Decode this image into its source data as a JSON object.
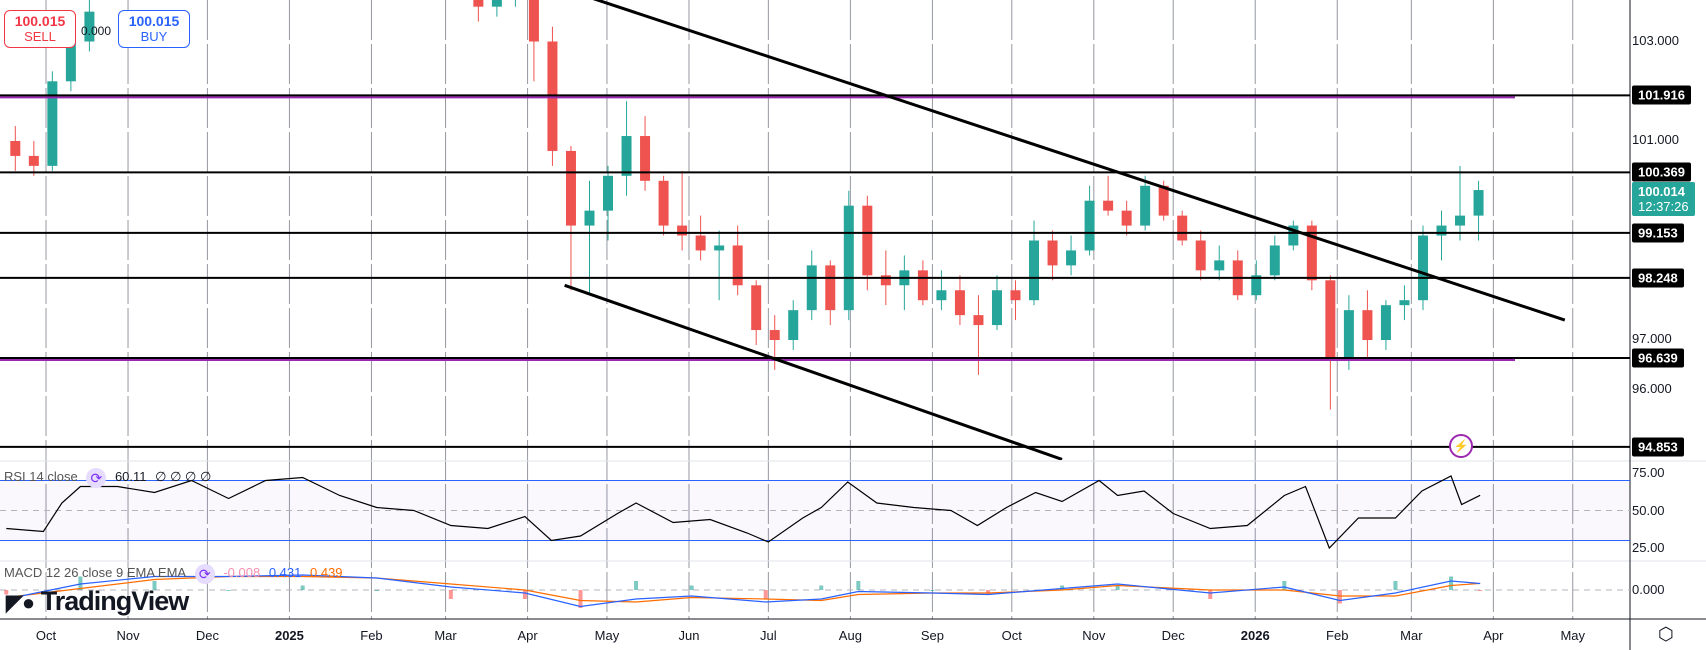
{
  "trade": {
    "sell_price": "100.015",
    "sell_label": "SELL",
    "buy_price": "100.015",
    "buy_label": "BUY",
    "spread": "0.000"
  },
  "rsi_legend": {
    "name": "RSI 14 close",
    "value": "60.11",
    "extras": "∅ ∅ ∅ ∅"
  },
  "macd_legend": {
    "name": "MACD 12 26 close 9 EMA EMA",
    "hist": "-0.008",
    "macd": "0.431",
    "signal": "0.439"
  },
  "logo": "TradingView",
  "current_price": {
    "price": "100.014",
    "countdown": "12:37:26"
  },
  "colors": {
    "up": "#26a69a",
    "down": "#ef5350",
    "level_purple": "#9c27b0",
    "macd": "#2962ff",
    "signal": "#ff6d00",
    "rsi_band": "#2962ff"
  },
  "icons": {
    "indicator": "sync-icon",
    "alert": "lightning-icon",
    "settings": "gear-icon"
  },
  "chart_data": {
    "type": "candlestick",
    "price_ticks": [
      "103.000",
      "101.000",
      "97.000",
      "96.000"
    ],
    "levels": [
      {
        "value": "101.916",
        "purple": true
      },
      {
        "value": "100.369",
        "purple": false
      },
      {
        "value": "99.153",
        "purple": false
      },
      {
        "value": "98.248",
        "purple": false
      },
      {
        "value": "96.639",
        "purple": true
      },
      {
        "value": "94.853",
        "purple": false
      }
    ],
    "trendlines": [
      {
        "from": [
          "2025-04-18",
          104.0
        ],
        "to": [
          "2026-04-28",
          97.4
        ]
      },
      {
        "from": [
          "2025-04-15",
          98.1
        ],
        "to": [
          "2025-10-20",
          94.6
        ]
      }
    ],
    "time_ticks": [
      {
        "label": "Oct",
        "date": "2024-10-01"
      },
      {
        "label": "Nov",
        "date": "2024-11-01"
      },
      {
        "label": "Dec",
        "date": "2024-12-01"
      },
      {
        "label": "2025",
        "date": "2025-01-01",
        "bold": true
      },
      {
        "label": "Feb",
        "date": "2025-02-01"
      },
      {
        "label": "Mar",
        "date": "2025-03-01"
      },
      {
        "label": "Apr",
        "date": "2025-04-01"
      },
      {
        "label": "May",
        "date": "2025-05-01"
      },
      {
        "label": "Jun",
        "date": "2025-06-01"
      },
      {
        "label": "Jul",
        "date": "2025-07-01"
      },
      {
        "label": "Aug",
        "date": "2025-08-01"
      },
      {
        "label": "Sep",
        "date": "2025-09-01"
      },
      {
        "label": "Oct",
        "date": "2025-10-01"
      },
      {
        "label": "Nov",
        "date": "2025-11-01"
      },
      {
        "label": "Dec",
        "date": "2025-12-01"
      },
      {
        "label": "2026",
        "date": "2026-01-01",
        "bold": true
      },
      {
        "label": "Feb",
        "date": "2026-02-01"
      },
      {
        "label": "Mar",
        "date": "2026-03-01"
      },
      {
        "label": "Apr",
        "date": "2026-04-01"
      },
      {
        "label": "May",
        "date": "2026-05-01"
      }
    ],
    "candles": [
      {
        "d": "2024-09-16",
        "o": 101.0,
        "h": 101.3,
        "l": 100.4,
        "c": 100.7
      },
      {
        "d": "2024-09-23",
        "o": 100.7,
        "h": 101.0,
        "l": 100.3,
        "c": 100.5
      },
      {
        "d": "2024-09-30",
        "o": 100.5,
        "h": 102.4,
        "l": 100.4,
        "c": 102.2
      },
      {
        "d": "2024-10-07",
        "o": 102.2,
        "h": 103.2,
        "l": 102.0,
        "c": 103.0
      },
      {
        "d": "2024-10-14",
        "o": 103.0,
        "h": 103.9,
        "l": 102.8,
        "c": 103.6
      },
      {
        "d": "2025-03-10",
        "o": 104.1,
        "h": 104.2,
        "l": 103.4,
        "c": 103.7
      },
      {
        "d": "2025-03-17",
        "o": 103.7,
        "h": 104.0,
        "l": 103.5,
        "c": 103.9
      },
      {
        "d": "2025-03-24",
        "o": 103.9,
        "h": 104.2,
        "l": 103.7,
        "c": 104.0
      },
      {
        "d": "2025-03-31",
        "o": 104.0,
        "h": 104.0,
        "l": 102.2,
        "c": 103.0
      },
      {
        "d": "2025-04-07",
        "o": 103.0,
        "h": 103.3,
        "l": 100.5,
        "c": 100.8
      },
      {
        "d": "2025-04-14",
        "o": 100.8,
        "h": 100.9,
        "l": 98.0,
        "c": 99.3
      },
      {
        "d": "2025-04-21",
        "o": 99.3,
        "h": 100.2,
        "l": 97.9,
        "c": 99.6
      },
      {
        "d": "2025-04-28",
        "o": 99.6,
        "h": 100.5,
        "l": 99.0,
        "c": 100.3
      },
      {
        "d": "2025-05-05",
        "o": 100.3,
        "h": 101.8,
        "l": 99.9,
        "c": 101.1
      },
      {
        "d": "2025-05-12",
        "o": 101.1,
        "h": 101.5,
        "l": 100.0,
        "c": 100.2
      },
      {
        "d": "2025-05-19",
        "o": 100.2,
        "h": 100.3,
        "l": 99.1,
        "c": 99.3
      },
      {
        "d": "2025-05-26",
        "o": 99.3,
        "h": 100.4,
        "l": 98.8,
        "c": 99.1
      },
      {
        "d": "2025-06-02",
        "o": 99.1,
        "h": 99.5,
        "l": 98.6,
        "c": 98.8
      },
      {
        "d": "2025-06-09",
        "o": 98.8,
        "h": 99.2,
        "l": 97.8,
        "c": 98.9
      },
      {
        "d": "2025-06-16",
        "o": 98.9,
        "h": 99.3,
        "l": 97.9,
        "c": 98.1
      },
      {
        "d": "2025-06-23",
        "o": 98.1,
        "h": 98.2,
        "l": 96.9,
        "c": 97.2
      },
      {
        "d": "2025-06-30",
        "o": 97.2,
        "h": 97.5,
        "l": 96.4,
        "c": 97.0
      },
      {
        "d": "2025-07-07",
        "o": 97.0,
        "h": 97.8,
        "l": 96.8,
        "c": 97.6
      },
      {
        "d": "2025-07-14",
        "o": 97.6,
        "h": 98.8,
        "l": 97.4,
        "c": 98.5
      },
      {
        "d": "2025-07-21",
        "o": 98.5,
        "h": 98.6,
        "l": 97.3,
        "c": 97.6
      },
      {
        "d": "2025-07-28",
        "o": 97.6,
        "h": 100.0,
        "l": 97.4,
        "c": 99.7
      },
      {
        "d": "2025-08-04",
        "o": 99.7,
        "h": 99.9,
        "l": 98.0,
        "c": 98.3
      },
      {
        "d": "2025-08-11",
        "o": 98.3,
        "h": 98.8,
        "l": 97.7,
        "c": 98.1
      },
      {
        "d": "2025-08-18",
        "o": 98.1,
        "h": 98.7,
        "l": 97.6,
        "c": 98.4
      },
      {
        "d": "2025-08-25",
        "o": 98.4,
        "h": 98.6,
        "l": 97.7,
        "c": 97.8
      },
      {
        "d": "2025-09-01",
        "o": 97.8,
        "h": 98.4,
        "l": 97.6,
        "c": 98.0
      },
      {
        "d": "2025-09-08",
        "o": 98.0,
        "h": 98.3,
        "l": 97.3,
        "c": 97.5
      },
      {
        "d": "2025-09-15",
        "o": 97.5,
        "h": 97.9,
        "l": 96.3,
        "c": 97.3
      },
      {
        "d": "2025-09-22",
        "o": 97.3,
        "h": 98.3,
        "l": 97.2,
        "c": 98.0
      },
      {
        "d": "2025-09-29",
        "o": 98.0,
        "h": 98.2,
        "l": 97.4,
        "c": 97.8
      },
      {
        "d": "2025-10-06",
        "o": 97.8,
        "h": 99.4,
        "l": 97.7,
        "c": 99.0
      },
      {
        "d": "2025-10-13",
        "o": 99.0,
        "h": 99.2,
        "l": 98.2,
        "c": 98.5
      },
      {
        "d": "2025-10-20",
        "o": 98.5,
        "h": 99.1,
        "l": 98.3,
        "c": 98.8
      },
      {
        "d": "2025-10-27",
        "o": 98.8,
        "h": 100.1,
        "l": 98.7,
        "c": 99.8
      },
      {
        "d": "2025-11-03",
        "o": 99.8,
        "h": 100.3,
        "l": 99.5,
        "c": 99.6
      },
      {
        "d": "2025-11-10",
        "o": 99.6,
        "h": 99.8,
        "l": 99.1,
        "c": 99.3
      },
      {
        "d": "2025-11-17",
        "o": 99.3,
        "h": 100.3,
        "l": 99.2,
        "c": 100.1
      },
      {
        "d": "2025-11-24",
        "o": 100.1,
        "h": 100.2,
        "l": 99.4,
        "c": 99.5
      },
      {
        "d": "2025-12-01",
        "o": 99.5,
        "h": 99.6,
        "l": 98.9,
        "c": 99.0
      },
      {
        "d": "2025-12-08",
        "o": 99.0,
        "h": 99.2,
        "l": 98.2,
        "c": 98.4
      },
      {
        "d": "2025-12-15",
        "o": 98.4,
        "h": 98.9,
        "l": 98.2,
        "c": 98.6
      },
      {
        "d": "2025-12-22",
        "o": 98.6,
        "h": 98.8,
        "l": 97.8,
        "c": 97.9
      },
      {
        "d": "2025-12-29",
        "o": 97.9,
        "h": 98.6,
        "l": 97.8,
        "c": 98.3
      },
      {
        "d": "2026-01-05",
        "o": 98.3,
        "h": 99.1,
        "l": 98.2,
        "c": 98.9
      },
      {
        "d": "2026-01-12",
        "o": 98.9,
        "h": 99.4,
        "l": 98.8,
        "c": 99.3
      },
      {
        "d": "2026-01-19",
        "o": 99.3,
        "h": 99.4,
        "l": 98.0,
        "c": 98.2
      },
      {
        "d": "2026-01-26",
        "o": 98.2,
        "h": 98.3,
        "l": 95.6,
        "c": 96.6
      },
      {
        "d": "2026-02-02",
        "o": 96.6,
        "h": 97.9,
        "l": 96.4,
        "c": 97.6
      },
      {
        "d": "2026-02-09",
        "o": 97.6,
        "h": 98.0,
        "l": 96.6,
        "c": 97.0
      },
      {
        "d": "2026-02-16",
        "o": 97.0,
        "h": 97.8,
        "l": 96.8,
        "c": 97.7
      },
      {
        "d": "2026-02-23",
        "o": 97.7,
        "h": 98.1,
        "l": 97.4,
        "c": 97.8
      },
      {
        "d": "2026-03-02",
        "o": 97.8,
        "h": 99.3,
        "l": 97.6,
        "c": 99.1
      },
      {
        "d": "2026-03-09",
        "o": 99.1,
        "h": 99.6,
        "l": 98.6,
        "c": 99.3
      },
      {
        "d": "2026-03-16",
        "o": 99.3,
        "h": 100.5,
        "l": 99.0,
        "c": 99.5
      },
      {
        "d": "2026-03-23",
        "o": 99.5,
        "h": 100.2,
        "l": 99.0,
        "c": 100.014
      }
    ],
    "rsi": {
      "ticks": [
        "75.00",
        "50.00",
        "25.00"
      ],
      "upper": 70,
      "middle": 50,
      "lower": 30,
      "values": [
        [
          "2024-09-16",
          38
        ],
        [
          "2024-09-30",
          36
        ],
        [
          "2024-10-07",
          55
        ],
        [
          "2024-10-14",
          66
        ],
        [
          "2024-10-28",
          66
        ],
        [
          "2024-11-11",
          62
        ],
        [
          "2024-11-25",
          70
        ],
        [
          "2024-12-09",
          58
        ],
        [
          "2024-12-23",
          70
        ],
        [
          "2025-01-06",
          72
        ],
        [
          "2025-01-20",
          60
        ],
        [
          "2025-02-03",
          52
        ],
        [
          "2025-02-17",
          50
        ],
        [
          "2025-03-03",
          40
        ],
        [
          "2025-03-17",
          38
        ],
        [
          "2025-03-31",
          46
        ],
        [
          "2025-04-10",
          30
        ],
        [
          "2025-04-21",
          33
        ],
        [
          "2025-05-05",
          48
        ],
        [
          "2025-05-12",
          55
        ],
        [
          "2025-05-26",
          42
        ],
        [
          "2025-06-09",
          44
        ],
        [
          "2025-06-23",
          35
        ],
        [
          "2025-07-01",
          29
        ],
        [
          "2025-07-14",
          45
        ],
        [
          "2025-07-21",
          52
        ],
        [
          "2025-07-31",
          69
        ],
        [
          "2025-08-11",
          55
        ],
        [
          "2025-08-25",
          52
        ],
        [
          "2025-09-08",
          50
        ],
        [
          "2025-09-18",
          40
        ],
        [
          "2025-09-29",
          52
        ],
        [
          "2025-10-10",
          62
        ],
        [
          "2025-10-20",
          56
        ],
        [
          "2025-11-03",
          70
        ],
        [
          "2025-11-10",
          60
        ],
        [
          "2025-11-20",
          63
        ],
        [
          "2025-12-01",
          48
        ],
        [
          "2025-12-15",
          38
        ],
        [
          "2025-12-29",
          40
        ],
        [
          "2026-01-12",
          60
        ],
        [
          "2026-01-20",
          66
        ],
        [
          "2026-01-29",
          25
        ],
        [
          "2026-02-09",
          45
        ],
        [
          "2026-02-23",
          45
        ],
        [
          "2026-03-05",
          63
        ],
        [
          "2026-03-16",
          73
        ],
        [
          "2026-03-20",
          54
        ],
        [
          "2026-03-27",
          60.11
        ]
      ]
    },
    "macd": {
      "tick": "0.000",
      "macd": [
        [
          "2024-09-16",
          -0.6
        ],
        [
          "2024-10-14",
          0.4
        ],
        [
          "2024-11-11",
          0.9
        ],
        [
          "2024-12-09",
          0.9
        ],
        [
          "2025-01-06",
          1.0
        ],
        [
          "2025-02-03",
          0.8
        ],
        [
          "2025-03-03",
          0.2
        ],
        [
          "2025-03-31",
          -0.2
        ],
        [
          "2025-04-21",
          -1.1
        ],
        [
          "2025-05-12",
          -0.6
        ],
        [
          "2025-06-02",
          -0.4
        ],
        [
          "2025-06-30",
          -0.8
        ],
        [
          "2025-07-21",
          -0.6
        ],
        [
          "2025-08-04",
          -0.1
        ],
        [
          "2025-09-01",
          -0.2
        ],
        [
          "2025-09-22",
          -0.3
        ],
        [
          "2025-10-20",
          0.1
        ],
        [
          "2025-11-10",
          0.4
        ],
        [
          "2025-12-15",
          -0.2
        ],
        [
          "2026-01-12",
          0.2
        ],
        [
          "2026-02-02",
          -0.7
        ],
        [
          "2026-02-23",
          -0.2
        ],
        [
          "2026-03-16",
          0.6
        ],
        [
          "2026-03-27",
          0.431
        ]
      ],
      "signal": [
        [
          "2024-09-16",
          -0.5
        ],
        [
          "2024-10-14",
          0.1
        ],
        [
          "2024-11-11",
          0.7
        ],
        [
          "2024-12-09",
          0.9
        ],
        [
          "2025-01-06",
          0.9
        ],
        [
          "2025-02-03",
          0.8
        ],
        [
          "2025-03-03",
          0.4
        ],
        [
          "2025-03-31",
          0.0
        ],
        [
          "2025-04-21",
          -0.7
        ],
        [
          "2025-05-12",
          -0.8
        ],
        [
          "2025-06-02",
          -0.5
        ],
        [
          "2025-06-30",
          -0.6
        ],
        [
          "2025-07-21",
          -0.7
        ],
        [
          "2025-08-04",
          -0.3
        ],
        [
          "2025-09-01",
          -0.2
        ],
        [
          "2025-09-22",
          -0.2
        ],
        [
          "2025-10-20",
          0.0
        ],
        [
          "2025-11-10",
          0.3
        ],
        [
          "2025-12-15",
          0.0
        ],
        [
          "2026-01-12",
          0.0
        ],
        [
          "2026-02-02",
          -0.4
        ],
        [
          "2026-02-23",
          -0.4
        ],
        [
          "2026-03-16",
          0.3
        ],
        [
          "2026-03-27",
          0.439
        ]
      ]
    }
  }
}
